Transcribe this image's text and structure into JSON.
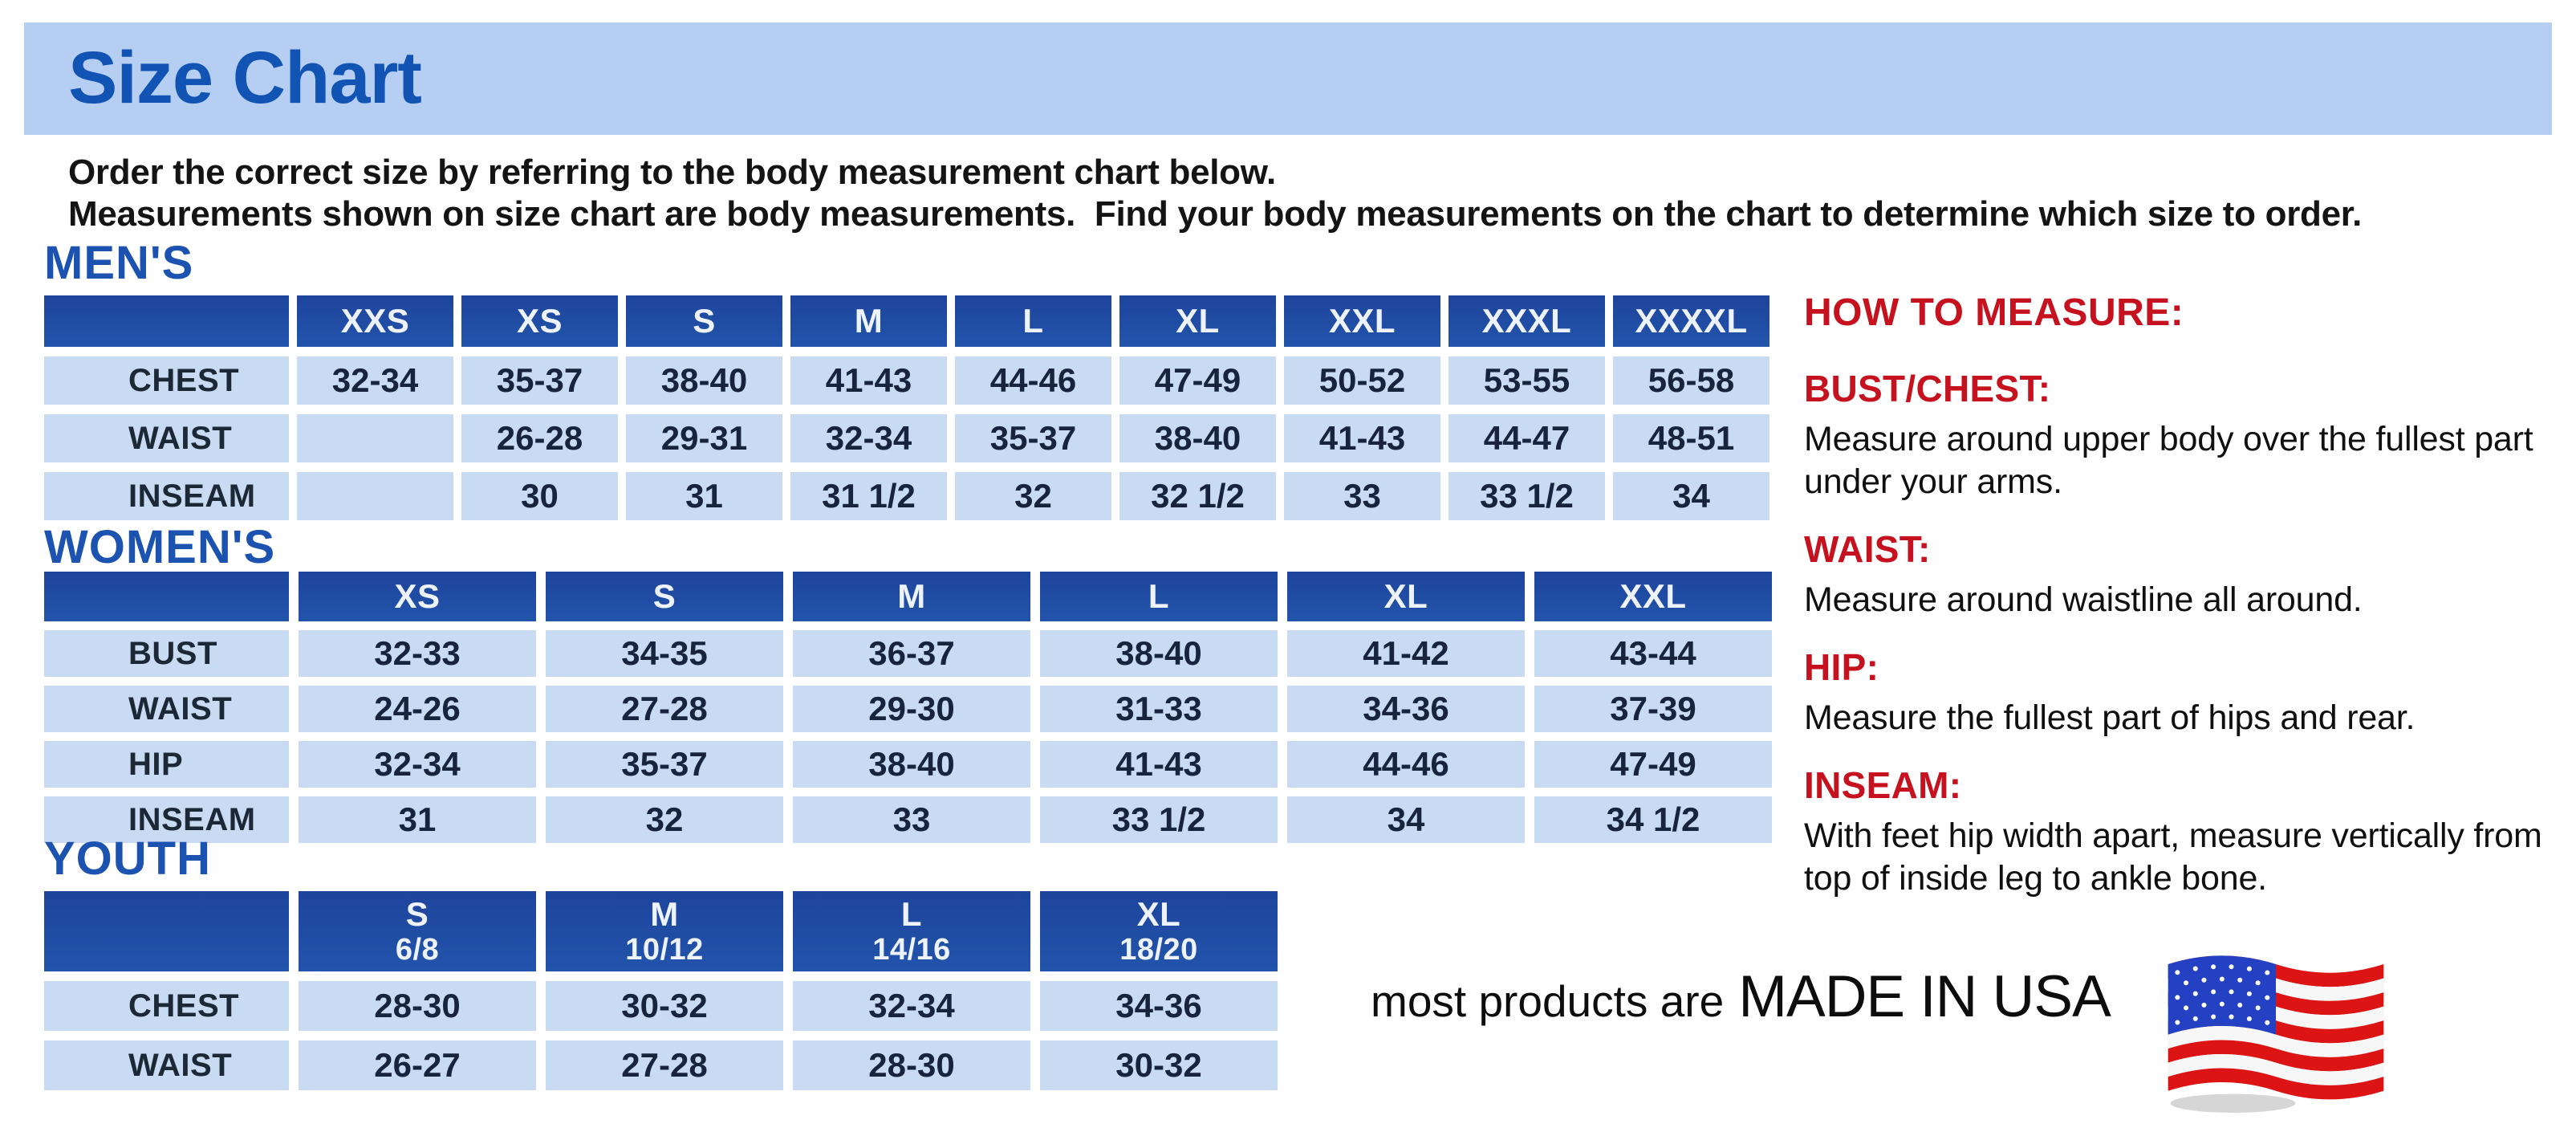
{
  "title": "Size Chart",
  "intro": {
    "line1": "Order the correct size by referring to the body measurement chart below.",
    "line2": "Measurements shown on size chart are body measurements.  Find your body measurements on the chart to determine which size to order."
  },
  "colors": {
    "banner_bg": "#b5cef2",
    "title_blue": "#1254b4",
    "heading_blue": "#1c52b0",
    "table_header_bg": "#2254ab",
    "cell_bg": "#c9dbf3",
    "cell_text": "#17243c",
    "accent_red": "#c5121e",
    "flag_red": "#dd1414",
    "flag_blue": "#2441c4"
  },
  "tables": {
    "mens": {
      "heading": "MEN'S",
      "columns": [
        "XXS",
        "XS",
        "S",
        "M",
        "L",
        "XL",
        "XXL",
        "XXXL",
        "XXXXL"
      ],
      "rows": [
        {
          "label": "CHEST",
          "values": [
            "32-34",
            "35-37",
            "38-40",
            "41-43",
            "44-46",
            "47-49",
            "50-52",
            "53-55",
            "56-58"
          ]
        },
        {
          "label": "WAIST",
          "values": [
            "",
            "26-28",
            "29-31",
            "32-34",
            "35-37",
            "38-40",
            "41-43",
            "44-47",
            "48-51"
          ]
        },
        {
          "label": "INSEAM",
          "values": [
            "",
            "30",
            "31",
            "31 1/2",
            "32",
            "32 1/2",
            "33",
            "33 1/2",
            "34"
          ]
        }
      ]
    },
    "womens": {
      "heading": "WOMEN'S",
      "columns": [
        "XS",
        "S",
        "M",
        "L",
        "XL",
        "XXL"
      ],
      "rows": [
        {
          "label": "BUST",
          "values": [
            "32-33",
            "34-35",
            "36-37",
            "38-40",
            "41-42",
            "43-44"
          ]
        },
        {
          "label": "WAIST",
          "values": [
            "24-26",
            "27-28",
            "29-30",
            "31-33",
            "34-36",
            "37-39"
          ]
        },
        {
          "label": "HIP",
          "values": [
            "32-34",
            "35-37",
            "38-40",
            "41-43",
            "44-46",
            "47-49"
          ]
        },
        {
          "label": "INSEAM",
          "values": [
            "31",
            "32",
            "33",
            "33 1/2",
            "34",
            "34 1/2"
          ]
        }
      ]
    },
    "youth": {
      "heading": "YOUTH",
      "columns": [
        {
          "size": "S",
          "range": "6/8"
        },
        {
          "size": "M",
          "range": "10/12"
        },
        {
          "size": "L",
          "range": "14/16"
        },
        {
          "size": "XL",
          "range": "18/20"
        }
      ],
      "rows": [
        {
          "label": "CHEST",
          "values": [
            "28-30",
            "30-32",
            "32-34",
            "34-36"
          ]
        },
        {
          "label": "WAIST",
          "values": [
            "26-27",
            "27-28",
            "28-30",
            "30-32"
          ]
        }
      ]
    }
  },
  "how_to_measure": {
    "heading": "HOW TO MEASURE:",
    "items": [
      {
        "label": "BUST/CHEST:",
        "text": "Measure around upper body over the fullest part under your arms."
      },
      {
        "label": "WAIST:",
        "text": "Measure around waistline all around."
      },
      {
        "label": "HIP:",
        "text": "Measure the fullest part of hips and rear."
      },
      {
        "label": "INSEAM:",
        "text": "With feet hip width apart, measure vertically from top of inside leg to ankle bone."
      }
    ]
  },
  "footer": {
    "prefix": "most products are",
    "made_in": "MADE IN USA",
    "flag_icon": "usa-flag-icon"
  }
}
